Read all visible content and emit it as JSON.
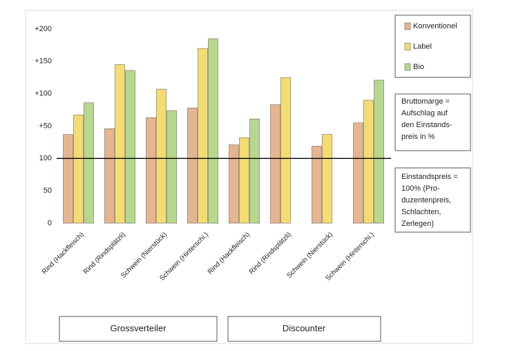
{
  "chart_data": {
    "type": "bar",
    "categories": [
      "Rind (Hackfleisch)",
      "Rind (Rindsplätzli)",
      "Schwein (Nierstück)",
      "Schwein (Hinterschi.)",
      "Rind (Hackfleisch)",
      "Rind (Rindsplätzli)",
      "Schwein (Nierstück)",
      "Schwein (Hinterschi.)"
    ],
    "series": [
      {
        "name": "Konventionel",
        "color": "#e6b48e",
        "values": [
          137,
          146,
          163,
          178,
          121,
          183,
          119,
          155
        ]
      },
      {
        "name": "Label",
        "color": "#f4dc70",
        "values": [
          167,
          245,
          207,
          270,
          132,
          225,
          137,
          190
        ]
      },
      {
        "name": "Bio",
        "color": "#b6d88c",
        "values": [
          186,
          236,
          174,
          285,
          161,
          null,
          null,
          221
        ]
      }
    ],
    "ylim": [
      0,
      300
    ],
    "yticks": [
      0,
      50,
      100,
      {
        "value": 150,
        "label": "+50"
      },
      {
        "value": 200,
        "label": "+100"
      },
      {
        "value": 250,
        "label": "+150"
      },
      {
        "value": 300,
        "label": "+200"
      }
    ],
    "reference_line": 100,
    "groups": [
      "Grossverteiler",
      "Discounter"
    ],
    "notes": [
      [
        "Bruttomarge =",
        "Aufschlag auf",
        "den Einstands-",
        "preis in %"
      ],
      [
        "Einstandspreis =",
        "100% (Pro-",
        "duzentenpreis,",
        "Schlachten,",
        "Zerlegen)"
      ]
    ],
    "legend": "right"
  }
}
